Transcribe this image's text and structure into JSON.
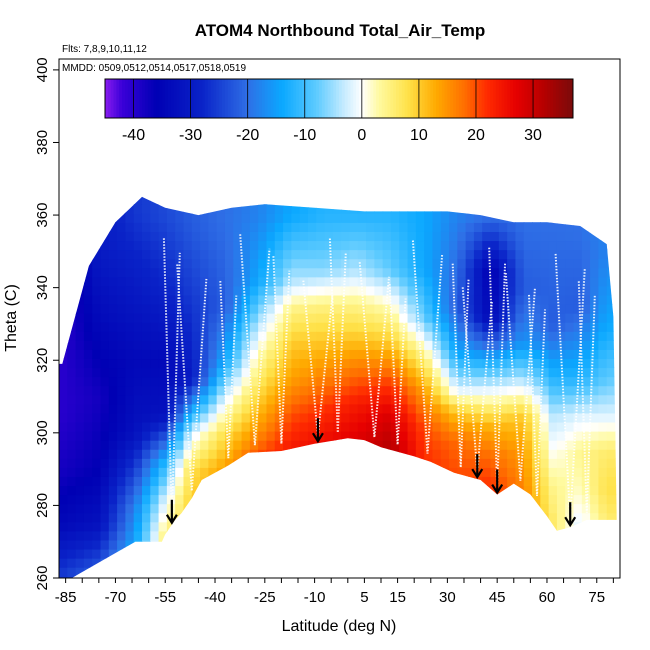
{
  "chart_data": {
    "type": "heatmap",
    "title": "ATOM4 Northbound Total_Air_Temp",
    "flights_note": "Flts: 7,8,9,10,11,12",
    "dates_note": "MMDD: 0509,0512,0514,0517,0518,0519",
    "xlabel": "Latitude (deg N)",
    "ylabel": "Theta (C)",
    "xlim": [
      -87,
      82
    ],
    "ylim": [
      260,
      403
    ],
    "x_ticks": [
      -85,
      -70,
      -55,
      -40,
      -25,
      -10,
      5,
      15,
      30,
      45,
      60,
      75
    ],
    "y_ticks": [
      260,
      280,
      300,
      320,
      340,
      360,
      380,
      400
    ],
    "colorbar": {
      "range": [
        -45,
        37
      ],
      "ticks": [
        -40,
        -30,
        -20,
        -10,
        0,
        10,
        20,
        30
      ],
      "colors": [
        {
          "v": -45,
          "c": "#8a1cf0"
        },
        {
          "v": -42,
          "c": "#3a00d8"
        },
        {
          "v": -36,
          "c": "#0000b4"
        },
        {
          "v": -28,
          "c": "#0a23c8"
        },
        {
          "v": -20,
          "c": "#2f6fe6"
        },
        {
          "v": -14,
          "c": "#0aa8ff"
        },
        {
          "v": -8,
          "c": "#5ccaff"
        },
        {
          "v": -3,
          "c": "#c8ecff"
        },
        {
          "v": 0,
          "c": "#ffffff"
        },
        {
          "v": 3,
          "c": "#fffaa0"
        },
        {
          "v": 8,
          "c": "#ffe24a"
        },
        {
          "v": 13,
          "c": "#ffaa00"
        },
        {
          "v": 18,
          "c": "#ff6e00"
        },
        {
          "v": 22,
          "c": "#ff2a00"
        },
        {
          "v": 27,
          "c": "#e60000"
        },
        {
          "v": 32,
          "c": "#b40000"
        },
        {
          "v": 37,
          "c": "#7a0a0a"
        }
      ]
    },
    "arrows_latitude": [
      -53,
      -9,
      39,
      45,
      67
    ],
    "bottom_boundary": [
      [
        -64,
        270
      ],
      [
        -56,
        270
      ],
      [
        -55,
        272
      ],
      [
        -52,
        276
      ],
      [
        -50,
        278
      ],
      [
        -47,
        282
      ],
      [
        -44,
        287
      ],
      [
        -36,
        291
      ],
      [
        -30,
        294.5
      ],
      [
        -20,
        295
      ],
      [
        -10,
        297
      ],
      [
        0,
        298.5
      ],
      [
        5,
        298
      ],
      [
        10,
        296
      ],
      [
        20,
        293.5
      ],
      [
        25,
        292
      ],
      [
        32,
        289
      ],
      [
        40,
        287
      ],
      [
        45,
        283
      ],
      [
        50,
        286
      ],
      [
        55,
        283
      ],
      [
        60,
        277
      ],
      [
        63,
        273
      ],
      [
        67,
        274
      ],
      [
        72,
        276
      ],
      [
        77,
        276
      ],
      [
        81,
        276
      ]
    ],
    "top_boundary": [
      [
        -86,
        319
      ],
      [
        -78,
        346
      ],
      [
        -70,
        358
      ],
      [
        -62,
        365
      ],
      [
        -55,
        362
      ],
      [
        -45,
        360
      ],
      [
        -35,
        362
      ],
      [
        -25,
        363
      ],
      [
        -10,
        362
      ],
      [
        5,
        361
      ],
      [
        20,
        361
      ],
      [
        30,
        361
      ],
      [
        40,
        360
      ],
      [
        50,
        358
      ],
      [
        60,
        358
      ],
      [
        70,
        357
      ],
      [
        78,
        352
      ],
      [
        80,
        332
      ]
    ],
    "temperature_field": [
      {
        "lat": -86,
        "theta": [
          [
            262,
            -26
          ],
          [
            275,
            -34
          ],
          [
            290,
            -38
          ],
          [
            305,
            -40
          ],
          [
            318,
            -40
          ]
        ]
      },
      {
        "lat": -75,
        "theta": [
          [
            262,
            -22
          ],
          [
            275,
            -32
          ],
          [
            290,
            -36
          ],
          [
            310,
            -38
          ],
          [
            330,
            -34
          ],
          [
            350,
            -30
          ]
        ]
      },
      {
        "lat": -64,
        "theta": [
          [
            265,
            -12
          ],
          [
            280,
            -18
          ],
          [
            300,
            -32
          ],
          [
            320,
            -34
          ],
          [
            340,
            -30
          ],
          [
            360,
            -26
          ]
        ]
      },
      {
        "lat": -55,
        "theta": [
          [
            272,
            5
          ],
          [
            282,
            -2
          ],
          [
            292,
            -12
          ],
          [
            305,
            -32
          ],
          [
            320,
            -34
          ],
          [
            340,
            -28
          ],
          [
            360,
            -24
          ]
        ]
      },
      {
        "lat": -47,
        "theta": [
          [
            282,
            10
          ],
          [
            290,
            8
          ],
          [
            300,
            -2
          ],
          [
            315,
            -30
          ],
          [
            335,
            -26
          ],
          [
            358,
            -22
          ]
        ]
      },
      {
        "lat": -37,
        "theta": [
          [
            290,
            14
          ],
          [
            300,
            8
          ],
          [
            310,
            -2
          ],
          [
            320,
            -14
          ],
          [
            335,
            -22
          ],
          [
            358,
            -20
          ]
        ]
      },
      {
        "lat": -27,
        "theta": [
          [
            294,
            20
          ],
          [
            302,
            14
          ],
          [
            312,
            8
          ],
          [
            322,
            2
          ],
          [
            330,
            -4
          ],
          [
            342,
            -14
          ],
          [
            360,
            -18
          ]
        ]
      },
      {
        "lat": -17,
        "theta": [
          [
            296,
            24
          ],
          [
            305,
            20
          ],
          [
            315,
            14
          ],
          [
            325,
            10
          ],
          [
            335,
            4
          ],
          [
            342,
            -4
          ],
          [
            360,
            -14
          ]
        ]
      },
      {
        "lat": -7,
        "theta": [
          [
            297,
            26
          ],
          [
            306,
            22
          ],
          [
            316,
            16
          ],
          [
            326,
            10
          ],
          [
            335,
            5
          ],
          [
            345,
            -6
          ],
          [
            360,
            -12
          ]
        ]
      },
      {
        "lat": 3,
        "theta": [
          [
            298,
            28
          ],
          [
            308,
            24
          ],
          [
            318,
            17
          ],
          [
            328,
            9
          ],
          [
            336,
            4
          ],
          [
            345,
            -4
          ],
          [
            360,
            -12
          ]
        ]
      },
      {
        "lat": 13,
        "theta": [
          [
            296,
            32
          ],
          [
            305,
            28
          ],
          [
            315,
            20
          ],
          [
            325,
            10
          ],
          [
            335,
            2
          ],
          [
            345,
            -8
          ],
          [
            360,
            -12
          ]
        ]
      },
      {
        "lat": 23,
        "theta": [
          [
            293,
            22
          ],
          [
            302,
            20
          ],
          [
            312,
            14
          ],
          [
            322,
            4
          ],
          [
            332,
            -8
          ],
          [
            345,
            -14
          ],
          [
            360,
            -14
          ]
        ]
      },
      {
        "lat": 33,
        "theta": [
          [
            289,
            20
          ],
          [
            298,
            18
          ],
          [
            306,
            10
          ],
          [
            312,
            -2
          ],
          [
            322,
            -14
          ],
          [
            335,
            -22
          ],
          [
            360,
            -18
          ]
        ]
      },
      {
        "lat": 43,
        "theta": [
          [
            285,
            22
          ],
          [
            294,
            18
          ],
          [
            302,
            12
          ],
          [
            308,
            4
          ],
          [
            318,
            -10
          ],
          [
            332,
            -34
          ],
          [
            345,
            -36
          ],
          [
            360,
            -20
          ]
        ]
      },
      {
        "lat": 53,
        "theta": [
          [
            285,
            16
          ],
          [
            295,
            14
          ],
          [
            305,
            10
          ],
          [
            315,
            -4
          ],
          [
            325,
            -16
          ],
          [
            340,
            -22
          ],
          [
            358,
            -20
          ]
        ]
      },
      {
        "lat": 62,
        "theta": [
          [
            276,
            6
          ],
          [
            285,
            4
          ],
          [
            295,
            0
          ],
          [
            305,
            -4
          ],
          [
            315,
            -12
          ],
          [
            330,
            -22
          ],
          [
            358,
            -20
          ]
        ]
      },
      {
        "lat": 70,
        "theta": [
          [
            274,
            -2
          ],
          [
            285,
            2
          ],
          [
            295,
            4
          ],
          [
            305,
            -2
          ],
          [
            315,
            -12
          ],
          [
            335,
            -22
          ],
          [
            355,
            -20
          ]
        ]
      },
      {
        "lat": 78,
        "theta": [
          [
            276,
            6
          ],
          [
            285,
            8
          ],
          [
            295,
            6
          ],
          [
            305,
            -2
          ],
          [
            315,
            -8
          ],
          [
            330,
            -14
          ],
          [
            350,
            -18
          ]
        ]
      }
    ]
  }
}
